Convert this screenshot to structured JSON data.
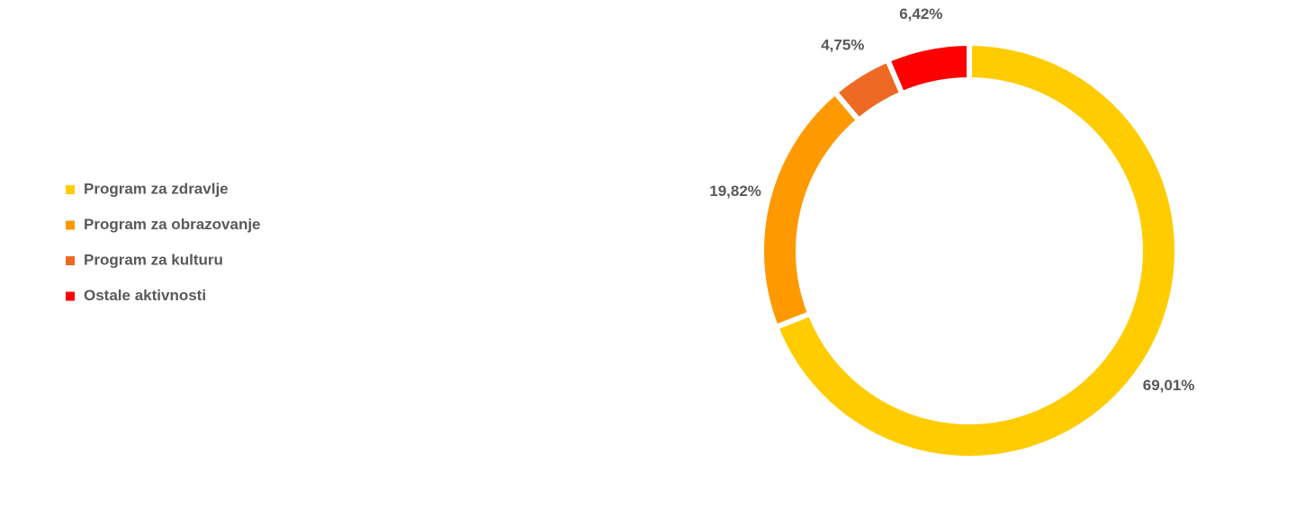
{
  "chart_data": {
    "type": "donut",
    "categories": [
      "Program za zdravlje",
      "Program za obrazovanje",
      "Program za kulturu",
      "Ostale aktivnosti"
    ],
    "values": [
      69.01,
      19.82,
      4.75,
      6.42
    ],
    "value_labels": [
      "69,01%",
      "19,82%",
      "4,75%",
      "6,42%"
    ],
    "colors": [
      "#FFCC00",
      "#FF9900",
      "#EE6A24",
      "#FF0000"
    ],
    "legend": "left"
  }
}
